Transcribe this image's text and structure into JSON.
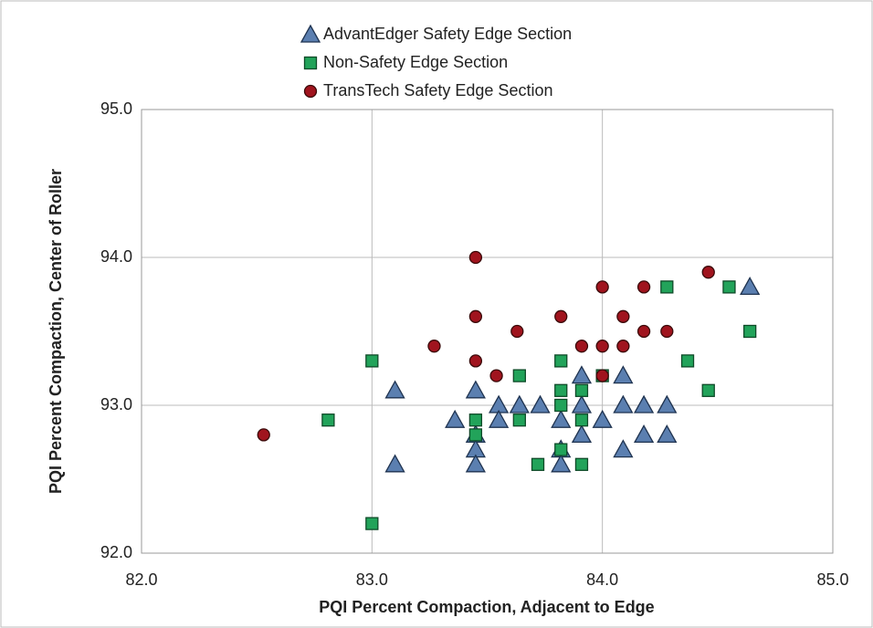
{
  "chart_data": {
    "type": "scatter",
    "xlabel": "PQI Percent Compaction, Adjacent to Edge",
    "ylabel": "PQI Percent Compaction, Center of Roller",
    "xlim": [
      82,
      85
    ],
    "ylim": [
      92,
      95
    ],
    "xticks": [
      {
        "value": 82,
        "label": "82.0"
      },
      {
        "value": 83,
        "label": "83.0"
      },
      {
        "value": 84,
        "label": "84.0"
      },
      {
        "value": 85,
        "label": "85.0"
      }
    ],
    "yticks": [
      {
        "value": 92,
        "label": "92.0"
      },
      {
        "value": 93,
        "label": "93.0"
      },
      {
        "value": 94,
        "label": "94.0"
      },
      {
        "value": 95,
        "label": "95.0"
      }
    ],
    "grid": true,
    "legend": "top",
    "series": [
      {
        "name": "AdvantEdger Safety Edge Section",
        "color": "#5b7fb0",
        "marker": "triangle",
        "x": [
          83.1,
          83.1,
          83.36,
          83.45,
          83.45,
          83.45,
          83.45,
          83.55,
          83.55,
          83.64,
          83.73,
          83.82,
          83.82,
          83.82,
          83.91,
          83.91,
          83.91,
          84.0,
          84.09,
          84.09,
          84.09,
          84.18,
          84.18,
          84.28,
          84.28,
          84.64
        ],
        "y": [
          93.1,
          92.6,
          92.9,
          93.1,
          92.8,
          92.7,
          92.6,
          93.0,
          92.9,
          93.0,
          93.0,
          92.9,
          92.7,
          92.6,
          93.2,
          93.0,
          92.8,
          92.9,
          93.2,
          93.0,
          92.7,
          93.0,
          92.8,
          93.0,
          92.8,
          93.8
        ]
      },
      {
        "name": "Non-Safety Edge Section",
        "color": "#22a35a",
        "marker": "square",
        "x": [
          82.81,
          83.0,
          83.0,
          83.45,
          83.45,
          83.64,
          83.64,
          83.72,
          83.82,
          83.82,
          83.82,
          83.82,
          83.91,
          83.91,
          83.91,
          84.0,
          84.28,
          84.37,
          84.46,
          84.55,
          84.64
        ],
        "y": [
          92.9,
          93.3,
          92.2,
          92.9,
          92.8,
          93.2,
          92.9,
          92.6,
          93.3,
          93.0,
          93.1,
          92.7,
          93.1,
          92.9,
          92.6,
          93.2,
          93.8,
          93.3,
          93.1,
          93.8,
          93.5
        ]
      },
      {
        "name": "TransTech Safety Edge Section",
        "color": "#a0141e",
        "marker": "circle",
        "x": [
          82.53,
          83.27,
          83.45,
          83.45,
          83.45,
          83.54,
          83.63,
          83.82,
          83.91,
          84.0,
          84.0,
          84.0,
          84.09,
          84.09,
          84.18,
          84.18,
          84.28,
          84.46
        ],
        "y": [
          92.8,
          93.4,
          94.0,
          93.6,
          93.3,
          93.2,
          93.5,
          93.6,
          93.4,
          93.8,
          93.4,
          93.2,
          93.6,
          93.4,
          93.8,
          93.5,
          93.5,
          93.9
        ]
      }
    ]
  }
}
